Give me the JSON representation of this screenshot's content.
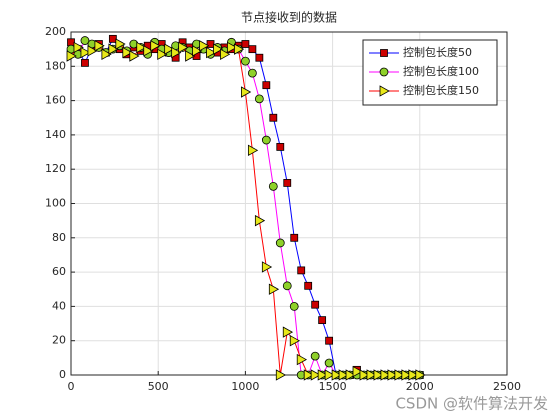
{
  "chart_data": {
    "type": "line",
    "title": "节点接收到的数据",
    "x": [
      0,
      40,
      80,
      120,
      160,
      200,
      240,
      280,
      320,
      360,
      400,
      440,
      480,
      520,
      560,
      600,
      640,
      680,
      720,
      760,
      800,
      840,
      880,
      920,
      960,
      1000,
      1040,
      1080,
      1120,
      1160,
      1200,
      1240,
      1280,
      1320,
      1360,
      1400,
      1440,
      1480,
      1520,
      1560,
      1600,
      1640,
      1680,
      1720,
      1760,
      1800,
      1840,
      1880,
      1920,
      1960,
      2000
    ],
    "series": [
      {
        "name": "控制包长度50",
        "color": "#0000ff",
        "marker": "square",
        "marker_color": "#cc0000",
        "values": [
          194,
          190,
          182,
          191,
          193,
          188,
          196,
          190,
          187,
          191,
          189,
          192,
          190,
          193,
          188,
          185,
          194,
          191,
          186,
          190,
          193,
          188,
          191,
          190,
          192,
          193,
          190,
          185,
          169,
          150,
          133,
          112,
          80,
          61,
          52,
          41,
          32,
          20,
          0,
          0,
          0,
          3,
          0,
          0,
          0,
          0,
          0,
          0,
          0,
          0,
          0
        ]
      },
      {
        "name": "控制包长度100",
        "color": "#ff00ff",
        "marker": "circle",
        "marker_color": "#8fd12a",
        "values": [
          190,
          187,
          195,
          193,
          191,
          188,
          190,
          192,
          189,
          193,
          191,
          187,
          194,
          190,
          188,
          192,
          191,
          189,
          193,
          190,
          187,
          191,
          189,
          194,
          190,
          183,
          176,
          161,
          137,
          110,
          77,
          52,
          40,
          0,
          0,
          11,
          0,
          7,
          0,
          0,
          0,
          0,
          0,
          0,
          0,
          0,
          0,
          0,
          0,
          0,
          0
        ]
      },
      {
        "name": "控制包长度150",
        "color": "#ff0000",
        "marker": "triangle-right",
        "marker_color": "#e8e81a",
        "values": [
          186,
          191,
          188,
          189,
          192,
          187,
          190,
          193,
          188,
          186,
          191,
          189,
          192,
          187,
          190,
          188,
          191,
          186,
          189,
          192,
          188,
          190,
          187,
          191,
          190,
          165,
          131,
          90,
          63,
          50,
          0,
          25,
          20,
          9,
          0,
          0,
          0,
          0,
          0,
          0,
          0,
          2,
          0,
          0,
          0,
          0,
          0,
          0,
          0,
          0,
          0
        ]
      }
    ],
    "xlim": [
      0,
      2500
    ],
    "xticks": [
      0,
      500,
      1000,
      1500,
      2000,
      2500
    ],
    "ylim": [
      0,
      200
    ],
    "yticks": [
      0,
      20,
      40,
      60,
      80,
      100,
      120,
      140,
      160,
      180,
      200
    ],
    "grid": true,
    "legend": "northeast",
    "watermark": "CSDN @软件算法开发"
  }
}
